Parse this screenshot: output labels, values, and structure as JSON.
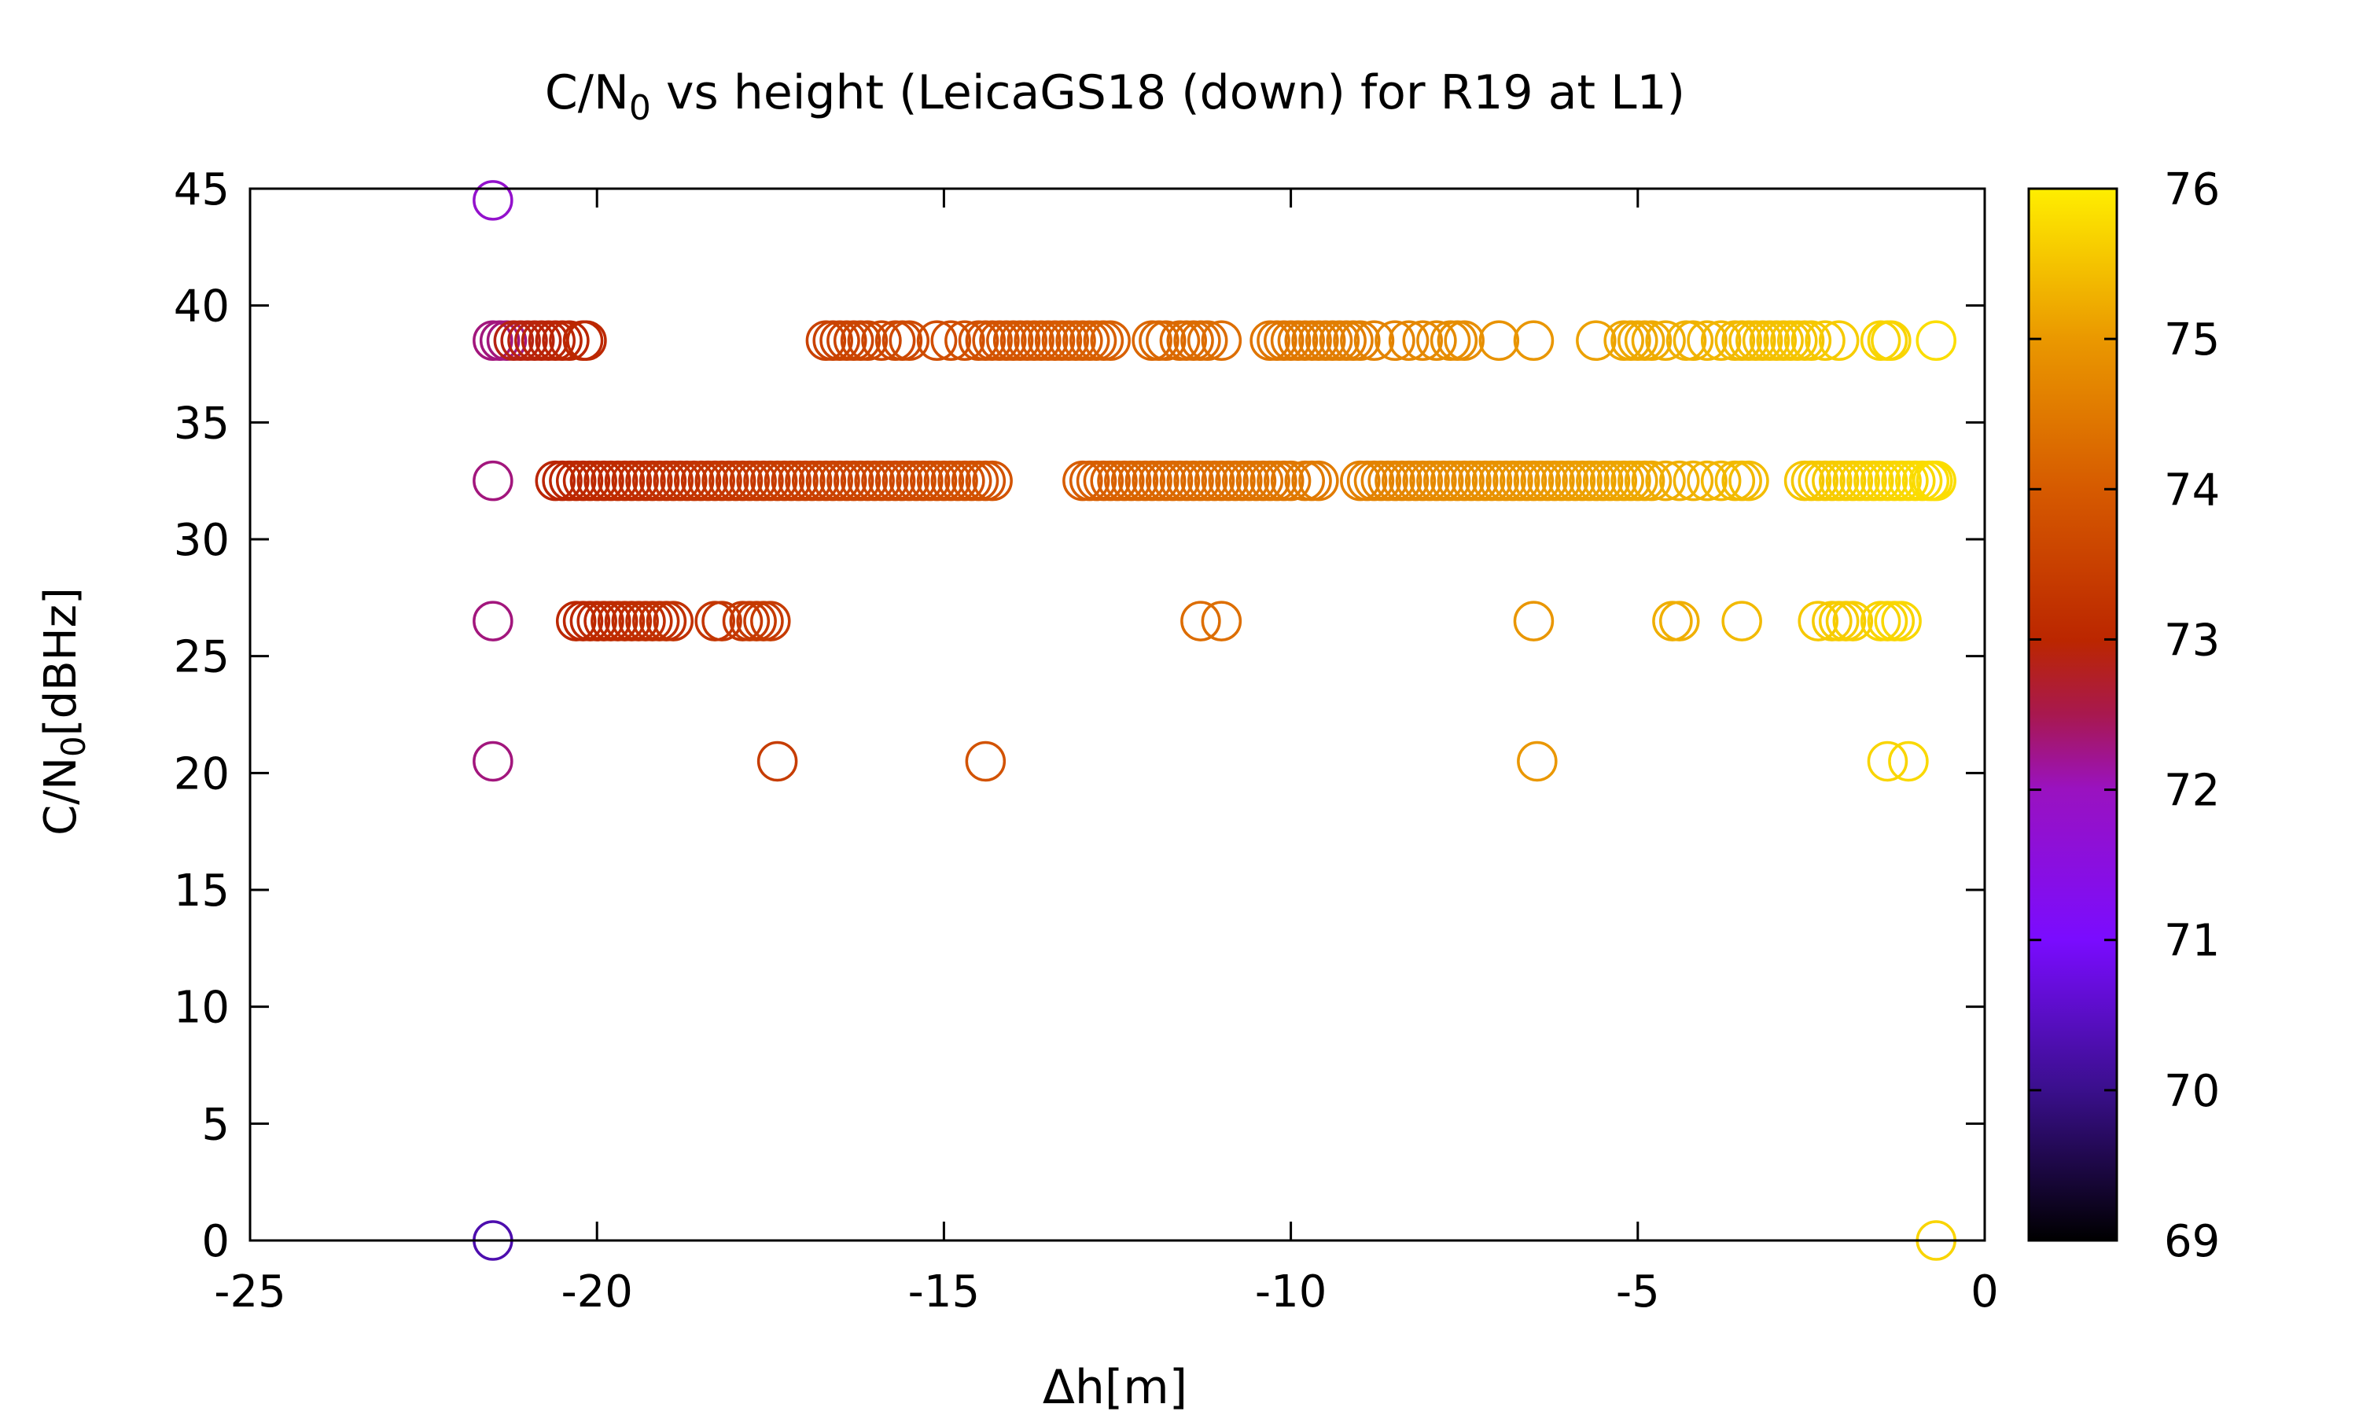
{
  "chart_data": {
    "type": "scatter",
    "title": "C/N0 vs height (LeicaGS18 (down) for R19 at L1)",
    "title_parts": {
      "pre": "C/N",
      "sub": "0",
      "post": " vs height (LeicaGS18 (down) for R19 at L1)"
    },
    "xlabel": "Δh[m]",
    "ylabel": "C/N0[dBHz]",
    "ylabel_parts": {
      "pre": "C/N",
      "sub": "0",
      "post": "[dBHz]"
    },
    "xlim": [
      -25,
      0
    ],
    "ylim": [
      0,
      45
    ],
    "xticks": [
      -25,
      -20,
      -15,
      -10,
      -5,
      0
    ],
    "yticks": [
      0,
      5,
      10,
      15,
      20,
      25,
      30,
      35,
      40,
      45
    ],
    "colorbar": {
      "min": 69,
      "max": 76,
      "ticks": [
        69,
        70,
        71,
        72,
        73,
        74,
        75,
        76
      ]
    },
    "marker": "open-circle",
    "point_groups": [
      {
        "y": 38.5,
        "x": [
          -21.5,
          -21.4,
          -21.3,
          -21.2,
          -21.1,
          -21.0,
          -20.9,
          -20.8,
          -20.7,
          -20.6,
          -20.5,
          -20.4,
          -20.2,
          -20.15,
          -16.7,
          -16.6,
          -16.5,
          -16.4,
          -16.3,
          -16.2,
          -16.1,
          -15.9,
          -15.7,
          -15.6,
          -15.5,
          -15.1,
          -14.9,
          -14.7,
          -14.5,
          -14.4,
          -14.3,
          -14.2,
          -14.1,
          -14.0,
          -13.9,
          -13.8,
          -13.7,
          -13.6,
          -13.5,
          -13.4,
          -13.3,
          -13.2,
          -13.1,
          -13.0,
          -12.9,
          -12.8,
          -12.7,
          -12.6,
          -12.0,
          -11.9,
          -11.8,
          -11.6,
          -11.5,
          -11.4,
          -11.3,
          -11.2,
          -11.0,
          -10.3,
          -10.2,
          -10.1,
          -10.0,
          -9.9,
          -9.8,
          -9.7,
          -9.6,
          -9.5,
          -9.4,
          -9.3,
          -9.2,
          -9.1,
          -9.0,
          -8.8,
          -8.5,
          -8.3,
          -8.1,
          -7.9,
          -7.7,
          -7.6,
          -7.5,
          -7.0,
          -6.5,
          -5.6,
          -5.2,
          -5.1,
          -5.0,
          -4.9,
          -4.8,
          -4.6,
          -4.3,
          -4.2,
          -4.0,
          -3.8,
          -3.6,
          -3.5,
          -3.4,
          -3.3,
          -3.2,
          -3.1,
          -3.0,
          -2.9,
          -2.8,
          -2.7,
          -2.6,
          -2.5,
          -2.3,
          -2.1,
          -1.5,
          -1.4,
          -1.35,
          -0.7
        ]
      },
      {
        "y": 32.5,
        "x": [
          -21.5,
          -20.6,
          -20.5,
          -20.4,
          -20.3,
          -20.2,
          -20.1,
          -20.0,
          -19.9,
          -19.8,
          -19.7,
          -19.6,
          -19.5,
          -19.4,
          -19.3,
          -19.2,
          -19.1,
          -19.0,
          -18.9,
          -18.8,
          -18.7,
          -18.6,
          -18.5,
          -18.4,
          -18.3,
          -18.2,
          -18.1,
          -18.0,
          -17.9,
          -17.8,
          -17.7,
          -17.6,
          -17.5,
          -17.4,
          -17.3,
          -17.2,
          -17.1,
          -17.0,
          -16.9,
          -16.8,
          -16.7,
          -16.6,
          -16.5,
          -16.4,
          -16.3,
          -16.2,
          -16.1,
          -16.0,
          -15.9,
          -15.8,
          -15.7,
          -15.6,
          -15.5,
          -15.4,
          -15.3,
          -15.2,
          -15.1,
          -15.0,
          -14.9,
          -14.8,
          -14.7,
          -14.6,
          -14.5,
          -14.4,
          -14.3,
          -13.0,
          -12.9,
          -12.8,
          -12.7,
          -12.6,
          -12.5,
          -12.4,
          -12.3,
          -12.2,
          -12.1,
          -12.0,
          -11.9,
          -11.8,
          -11.7,
          -11.6,
          -11.5,
          -11.4,
          -11.3,
          -11.2,
          -11.1,
          -11.0,
          -10.9,
          -10.8,
          -10.7,
          -10.6,
          -10.5,
          -10.4,
          -10.3,
          -10.2,
          -10.1,
          -10.0,
          -9.8,
          -9.7,
          -9.6,
          -9.0,
          -8.9,
          -8.8,
          -8.7,
          -8.6,
          -8.5,
          -8.4,
          -8.3,
          -8.2,
          -8.1,
          -8.0,
          -7.9,
          -7.8,
          -7.7,
          -7.6,
          -7.5,
          -7.4,
          -7.3,
          -7.2,
          -7.1,
          -7.0,
          -6.9,
          -6.8,
          -6.7,
          -6.6,
          -6.5,
          -6.4,
          -6.3,
          -6.2,
          -6.1,
          -6.0,
          -5.9,
          -5.8,
          -5.7,
          -5.6,
          -5.5,
          -5.4,
          -5.3,
          -5.2,
          -5.1,
          -5.0,
          -4.9,
          -4.8,
          -4.6,
          -4.4,
          -4.2,
          -4.0,
          -3.8,
          -3.6,
          -3.5,
          -3.4,
          -2.6,
          -2.5,
          -2.4,
          -2.3,
          -2.2,
          -2.1,
          -2.0,
          -1.9,
          -1.8,
          -1.7,
          -1.6,
          -1.5,
          -1.4,
          -1.3,
          -1.2,
          -1.1,
          -1.0,
          -0.9,
          -0.8,
          -0.75,
          -0.7
        ]
      },
      {
        "y": 26.5,
        "x": [
          -21.5,
          -20.3,
          -20.2,
          -20.1,
          -20.0,
          -19.9,
          -19.8,
          -19.7,
          -19.6,
          -19.5,
          -19.4,
          -19.3,
          -19.2,
          -19.1,
          -19.0,
          -18.9,
          -18.3,
          -18.2,
          -17.9,
          -17.8,
          -17.7,
          -17.6,
          -17.5,
          -11.3,
          -11.0,
          -6.5,
          -4.5,
          -4.4,
          -3.5,
          -2.4,
          -2.2,
          -2.1,
          -2.0,
          -1.9,
          -1.5,
          -1.4,
          -1.3,
          -1.2
        ]
      },
      {
        "y": 20.5,
        "x": [
          -21.5,
          -17.4,
          -14.4,
          -6.45,
          -1.4,
          -1.1
        ]
      },
      {
        "y": 44.5,
        "x": [
          -21.5
        ]
      },
      {
        "y": 0,
        "x": [
          -21.5,
          -0.7
        ]
      }
    ]
  }
}
